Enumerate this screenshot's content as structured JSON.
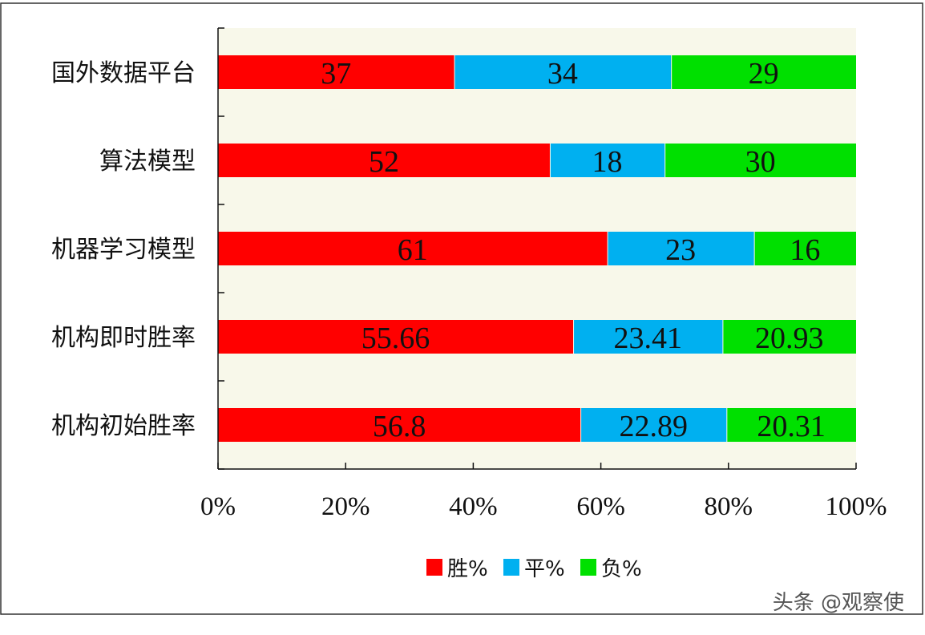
{
  "chart_data": {
    "type": "bar",
    "orientation": "horizontal",
    "stacked": "percent",
    "categories": [
      "国外数据平台",
      "算法模型",
      "机器学习模型",
      "机构即时胜率",
      "机构初始胜率"
    ],
    "series": [
      {
        "name": "胜%",
        "color": "#ff0000",
        "values": [
          37,
          52,
          61,
          55.66,
          56.8
        ]
      },
      {
        "name": "平%",
        "color": "#00b0f0",
        "values": [
          34,
          18,
          23,
          23.41,
          22.89
        ]
      },
      {
        "name": "负%",
        "color": "#00e000",
        "values": [
          29,
          30,
          16,
          20.93,
          20.31
        ]
      }
    ],
    "xticks": [
      "0%",
      "20%",
      "40%",
      "60%",
      "80%",
      "100%"
    ],
    "xlim": [
      0,
      100
    ],
    "legend_position": "bottom",
    "plot_background": "#f8f8ea",
    "grid": false
  },
  "watermark": "头条 @观察使"
}
